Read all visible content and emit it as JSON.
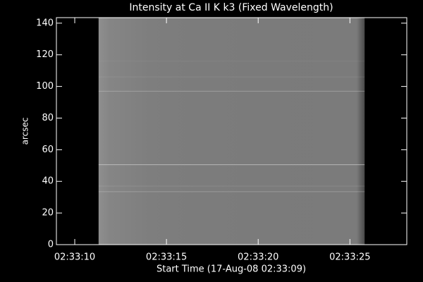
{
  "chart_data": {
    "type": "image",
    "title": "Intensity at Ca II K k3 (Fixed Wavelength)",
    "x_label": "Start Time (17-Aug-08 02:33:09)",
    "y_label": "arcsec",
    "xlim": [
      0,
      19.1
    ],
    "xticks": [
      {
        "value": 1,
        "label": "02:33:10"
      },
      {
        "value": 6,
        "label": "02:33:15"
      },
      {
        "value": 11,
        "label": "02:33:20"
      },
      {
        "value": 16,
        "label": "02:33:25"
      }
    ],
    "ylim": [
      0,
      143.5
    ],
    "yticks": [
      0,
      20,
      40,
      60,
      80,
      100,
      120,
      140
    ],
    "image_x": [
      2.3,
      16.8
    ],
    "color": "#7b7b7b",
    "background": "#000000",
    "axis_color": "#ffffff"
  }
}
